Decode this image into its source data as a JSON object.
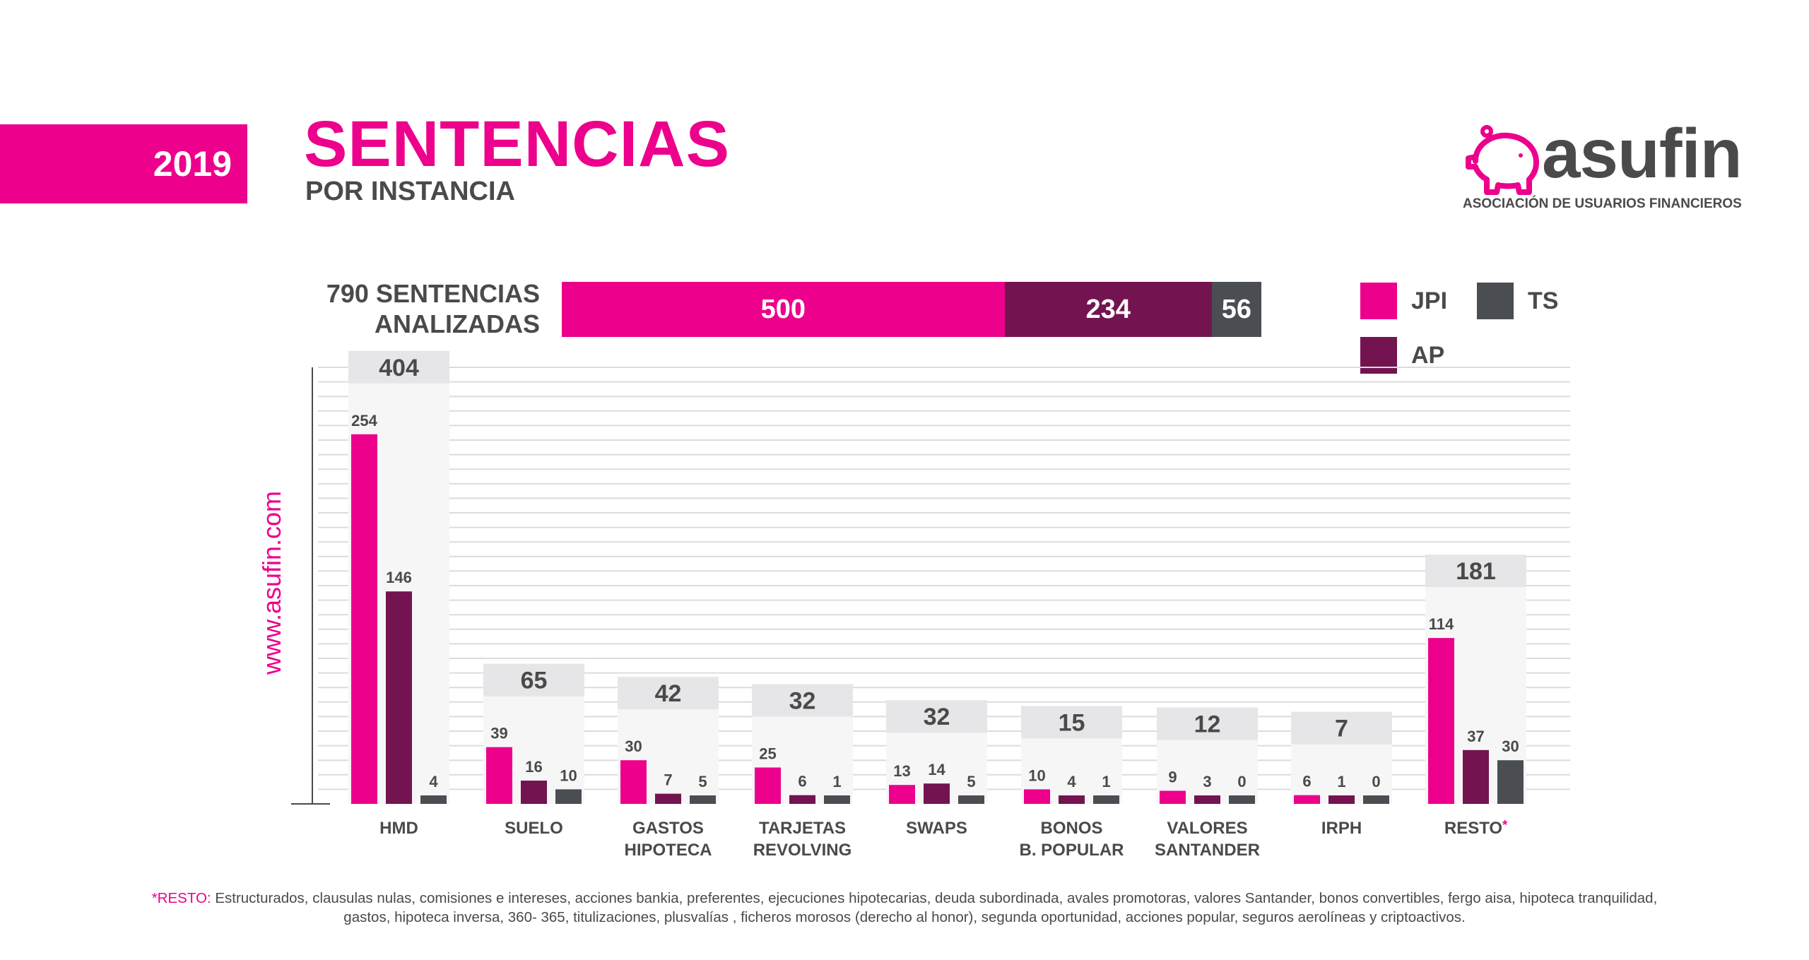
{
  "header": {
    "year": "2019",
    "title": "SENTENCIAS",
    "subtitle": "POR INSTANCIA"
  },
  "brand": {
    "name": "asufin",
    "tagline": "ASOCIACIÓN DE USUARIOS FINANCIEROS",
    "icon": "piggy-bank-icon",
    "website": "www.asufin.com"
  },
  "colors": {
    "jpi": "#ec008c",
    "ap": "#731450",
    "ts": "#4a4d52",
    "total_box": "#e6e6e8",
    "text": "#4a4a4a"
  },
  "summary": {
    "label_line1": "790 SENTENCIAS",
    "label_line2": "ANALIZADAS",
    "total": 790,
    "segments": [
      {
        "series": "JPI",
        "value": 500,
        "label": "500"
      },
      {
        "series": "AP",
        "value": 234,
        "label": "234"
      },
      {
        "series": "TS",
        "value": 56,
        "label": "56"
      }
    ]
  },
  "legend": {
    "jpi": "JPI",
    "ts": "TS",
    "ap": "AP"
  },
  "chart_data": {
    "type": "bar",
    "title": "SENTENCIAS POR INSTANCIA",
    "categories": [
      [
        "HMD"
      ],
      [
        "SUELO"
      ],
      [
        "GASTOS",
        "HIPOTECA"
      ],
      [
        "TARJETAS",
        "REVOLVING"
      ],
      [
        "SWAPS"
      ],
      [
        "BONOS",
        "B. POPULAR"
      ],
      [
        "VALORES",
        "SANTANDER"
      ],
      [
        "IRPH"
      ],
      [
        "RESTO"
      ]
    ],
    "category_marks": [
      "",
      "",
      "",
      "",
      "",
      "",
      "",
      "",
      "*"
    ],
    "series": [
      {
        "name": "JPI",
        "values": [
          254,
          39,
          30,
          25,
          13,
          10,
          9,
          6,
          114
        ]
      },
      {
        "name": "AP",
        "values": [
          146,
          16,
          7,
          6,
          14,
          4,
          3,
          1,
          37
        ]
      },
      {
        "name": "TS",
        "values": [
          4,
          10,
          5,
          1,
          5,
          1,
          0,
          0,
          30
        ]
      }
    ],
    "totals": [
      404,
      65,
      42,
      32,
      32,
      15,
      12,
      7,
      181
    ],
    "ylim": [
      0,
      300
    ],
    "grid": true,
    "xlabel": "",
    "ylabel": ""
  },
  "footnote": {
    "label": "*RESTO:",
    "line1": "Estructurados, clausulas nulas, comisiones e intereses, acciones bankia, preferentes, ejecuciones hipotecarias, deuda subordinada, avales promotoras, valores Santander, bonos convertibles, fergo aisa, hipoteca tranquilidad,",
    "line2": "gastos, hipoteca inversa, 360- 365, titulizaciones, plusvalías , ficheros morosos (derecho al honor), segunda oportunidad, acciones popular, seguros aerolíneas y criptoactivos."
  }
}
